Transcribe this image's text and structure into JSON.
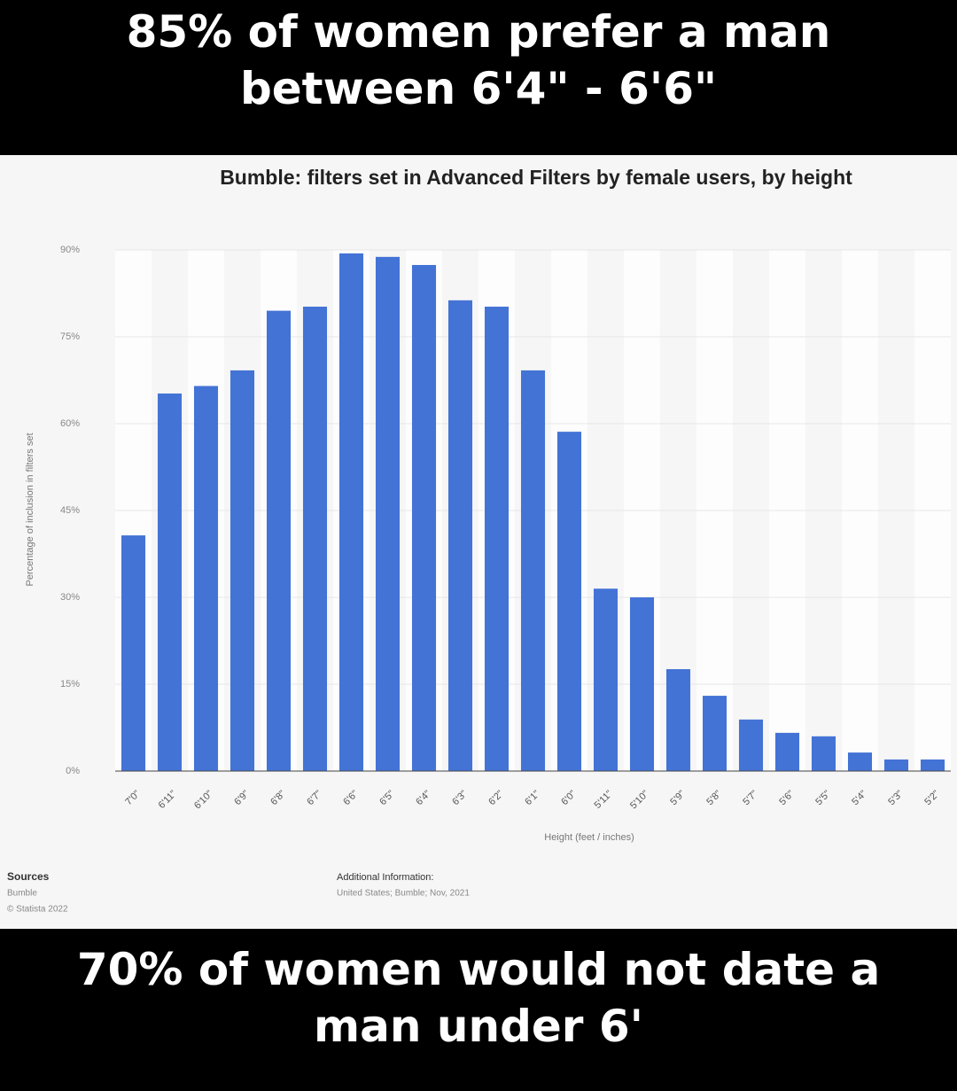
{
  "header": {
    "caption": "85% of women prefer a man between 6'4\" - 6'6\""
  },
  "footer": {
    "caption": "70% of women would not date a man under 6'"
  },
  "chart_data": {
    "type": "bar",
    "title": "Bumble: filters set in Advanced Filters by female users, by height",
    "y_label": "Percentage of inclusion in filters set",
    "x_label": "Height (feet / inches)",
    "categories": [
      "7'0\"",
      "6'11\"",
      "6'10\"",
      "6'9\"",
      "6'8\"",
      "6'7\"",
      "6'6\"",
      "6'5\"",
      "6'4\"",
      "6'3\"",
      "6'2\"",
      "6'1\"",
      "6'0\"",
      "5'11\"",
      "5'10\"",
      "5'9\"",
      "5'8\"",
      "5'7\"",
      "5'6\"",
      "5'5\"",
      "5'4\"",
      "5'3\"",
      "5'2\""
    ],
    "values": [
      40.7,
      65.2,
      66.5,
      69.2,
      79.5,
      80.2,
      89.4,
      88.8,
      87.4,
      81.3,
      80.2,
      69.2,
      58.6,
      31.5,
      30.0,
      17.6,
      13.0,
      8.9,
      6.6,
      6.0,
      3.2,
      2.0,
      2.0
    ],
    "color": "#4473d6",
    "ylim": [
      0,
      90
    ],
    "yticks": [
      {
        "value": 0,
        "label": "0%"
      },
      {
        "value": 15,
        "label": "15%"
      },
      {
        "value": 30,
        "label": "30%"
      },
      {
        "value": 45,
        "label": "45%"
      },
      {
        "value": 60,
        "label": "60%"
      },
      {
        "value": 75,
        "label": "75%"
      },
      {
        "value": 90,
        "label": "90%"
      }
    ],
    "grid": true,
    "sources": {
      "heading": "Sources",
      "items": [
        "Bumble",
        "© Statista 2022"
      ]
    },
    "additional_info": {
      "heading": "Additional Information:",
      "text": "United States; Bumble; Nov, 2021"
    }
  }
}
